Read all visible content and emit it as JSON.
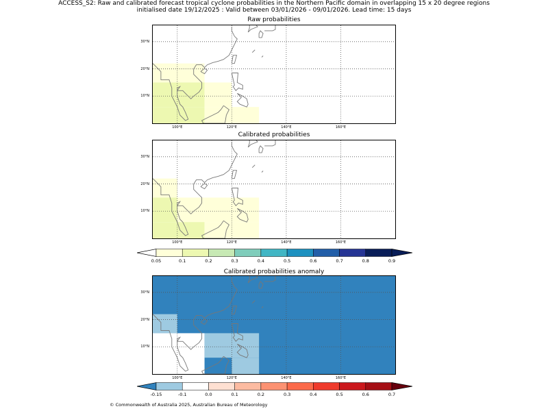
{
  "header": {
    "line1": "ACCESS_S2: Raw and calibrated forecast tropical cyclone probabilities in the Northern Pacific domain in overlapping 15 x 20 degree regions",
    "line2": "initialised date 19/12/2025 :  Valid between 03/01/2026 - 09/01/2026. Lead time: 15 days"
  },
  "panels": [
    {
      "title": "Raw probabilities"
    },
    {
      "title": "Calibrated probabilities"
    },
    {
      "title": "Calibrated probabilities anomaly"
    }
  ],
  "axes": {
    "lat_labels": [
      "30°N",
      "20°N",
      "10°N"
    ],
    "lon_labels": [
      "100°E",
      "120°E",
      "140°E",
      "160°E"
    ]
  },
  "colorbar_prob": {
    "ticks": [
      "0.05",
      "0.1",
      "0.2",
      "0.3",
      "0.4",
      "0.5",
      "0.6",
      "0.7",
      "0.8",
      "0.9"
    ],
    "colors": [
      "#ffffd9",
      "#edf8b1",
      "#c7e9b4",
      "#7fcdbb",
      "#41b6c4",
      "#1d91c0",
      "#225ea8",
      "#253494",
      "#081d58"
    ],
    "over_color": "#081d58"
  },
  "colorbar_anom": {
    "ticks": [
      "-0.15",
      "-0.1",
      "0.0",
      "0.1",
      "0.2",
      "0.3",
      "0.4",
      "0.5",
      "0.6",
      "0.7"
    ],
    "colors": [
      "#9ecae1",
      "#ffffff",
      "#fee0d2",
      "#fcbba1",
      "#fc9272",
      "#fb6a4a",
      "#ef3b2c",
      "#cb181d",
      "#a50f15"
    ],
    "under_color": "#3182bd",
    "over_color": "#67000d"
  },
  "map_data": {
    "lon_range": [
      91,
      180
    ],
    "lat_range": [
      0,
      36
    ],
    "raw_cells": [
      {
        "lon": [
          91,
          110
        ],
        "lat": [
          15,
          22
        ],
        "color": "#ffffd9"
      },
      {
        "lon": [
          91,
          110
        ],
        "lat": [
          6,
          15
        ],
        "color": "#edf8b1"
      },
      {
        "lon": [
          110,
          120
        ],
        "lat": [
          6,
          15
        ],
        "color": "#ffffd9"
      },
      {
        "lon": [
          91,
          110
        ],
        "lat": [
          0,
          6
        ],
        "color": "#edf8b1"
      },
      {
        "lon": [
          110,
          130
        ],
        "lat": [
          0,
          6
        ],
        "color": "#ffffd9"
      }
    ],
    "calibrated_cells": [
      {
        "lon": [
          91,
          100
        ],
        "lat": [
          15,
          22
        ],
        "color": "#ffffd9"
      },
      {
        "lon": [
          91,
          100
        ],
        "lat": [
          6,
          15
        ],
        "color": "#edf8b1"
      },
      {
        "lon": [
          100,
          110
        ],
        "lat": [
          6,
          15
        ],
        "color": "#ffffd9"
      },
      {
        "lon": [
          110,
          130
        ],
        "lat": [
          6,
          15
        ],
        "color": "#ffffd9"
      },
      {
        "lon": [
          91,
          110
        ],
        "lat": [
          0,
          6
        ],
        "color": "#edf8b1"
      },
      {
        "lon": [
          110,
          130
        ],
        "lat": [
          0,
          6
        ],
        "color": "#ffffd9"
      }
    ],
    "anomaly_background": "#3182bd",
    "anomaly_cells": [
      {
        "lon": [
          91,
          100
        ],
        "lat": [
          15,
          22
        ],
        "color": "#9ecae1"
      },
      {
        "lon": [
          91,
          110
        ],
        "lat": [
          0,
          15
        ],
        "color": "#ffffff"
      },
      {
        "lon": [
          110,
          130
        ],
        "lat": [
          6,
          15
        ],
        "color": "#9ecae1"
      },
      {
        "lon": [
          120,
          130
        ],
        "lat": [
          0,
          6
        ],
        "color": "#9ecae1"
      }
    ]
  },
  "footer": "© Commonwealth of Australia 2025, Australian Bureau of Meteorology"
}
